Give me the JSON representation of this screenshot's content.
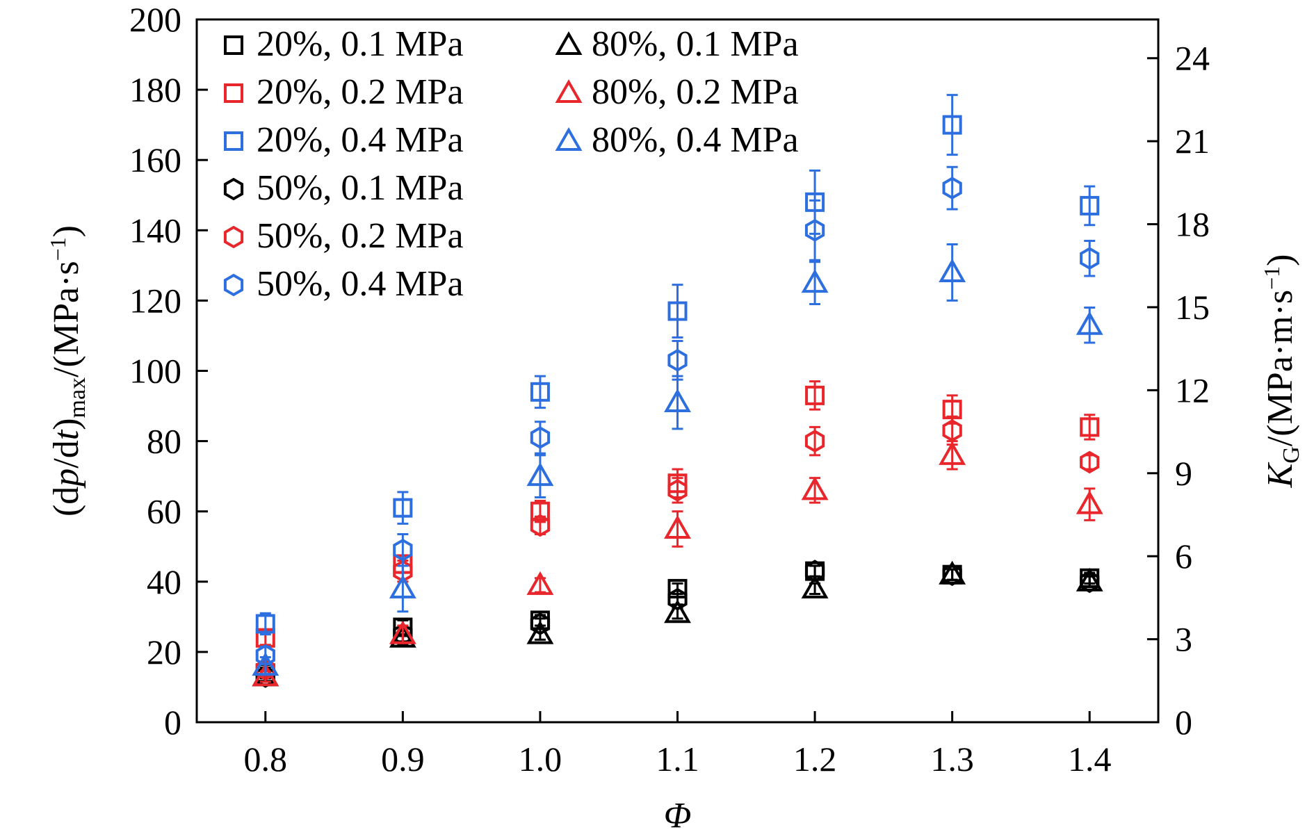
{
  "chart_data": {
    "type": "scatter",
    "title": "",
    "x": [
      0.8,
      0.9,
      1.0,
      1.1,
      1.2,
      1.3,
      1.4
    ],
    "xlabel": "Φ",
    "xlim": [
      0.75,
      1.45
    ],
    "xticks": [
      "0.8",
      "0.9",
      "1.0",
      "1.1",
      "1.2",
      "1.3",
      "1.4"
    ],
    "ylabel_left": {
      "parts": [
        {
          "text": "(d",
          "style": "normal"
        },
        {
          "text": "p",
          "style": "italic"
        },
        {
          "text": "/d",
          "style": "normal"
        },
        {
          "text": "t",
          "style": "italic"
        },
        {
          "text": ")",
          "style": "normal"
        },
        {
          "text": "max",
          "style": "sub"
        },
        {
          "text": "/(MPa·s",
          "style": "normal"
        },
        {
          "text": "−1",
          "style": "sup"
        },
        {
          "text": ")",
          "style": "normal"
        }
      ]
    },
    "ylim_left": [
      0,
      200
    ],
    "yticks_left": [
      "0",
      "20",
      "40",
      "60",
      "80",
      "100",
      "120",
      "140",
      "160",
      "180",
      "200"
    ],
    "ylabel_right": {
      "parts": [
        {
          "text": "K",
          "style": "italic"
        },
        {
          "text": "G",
          "style": "sub"
        },
        {
          "text": "/(MPa·m·s",
          "style": "normal"
        },
        {
          "text": "−1",
          "style": "sup"
        },
        {
          "text": ")",
          "style": "normal"
        }
      ]
    },
    "ylim_right": [
      0,
      25.4
    ],
    "yticks_right": [
      "0",
      "3",
      "6",
      "9",
      "12",
      "15",
      "18",
      "21",
      "24"
    ],
    "grid": false,
    "legend_position": "top-left",
    "colors": {
      "0.1 MPa": "#000000",
      "0.2 MPa": "#e8262b",
      "0.4 MPa": "#2e6fe0"
    },
    "series": [
      {
        "name": "20%, 0.1 MPa",
        "marker": "square",
        "color": "#000000",
        "values": [
          14,
          27,
          29,
          38,
          43,
          42,
          41
        ],
        "errors": [
          1.5,
          2,
          1.5,
          1.5,
          1.5,
          1.5,
          1.5
        ]
      },
      {
        "name": "20%, 0.2 MPa",
        "marker": "square",
        "color": "#e8262b",
        "values": [
          24,
          45,
          60,
          68,
          93,
          89,
          84
        ],
        "errors": [
          2,
          2.5,
          3,
          4,
          4,
          4,
          3.5
        ]
      },
      {
        "name": "20%, 0.4 MPa",
        "marker": "square",
        "color": "#2e6fe0",
        "values": [
          28,
          61,
          94,
          117,
          148,
          170,
          147
        ],
        "errors": [
          3,
          4.5,
          4.5,
          7.5,
          9,
          8.5,
          5.5
        ]
      },
      {
        "name": "50%, 0.1 MPa",
        "marker": "hexagon",
        "color": "#000000",
        "values": [
          13,
          25,
          28,
          35,
          43,
          42,
          40
        ],
        "errors": [
          1.5,
          2,
          1.5,
          1.5,
          1.5,
          1.5,
          1.5
        ]
      },
      {
        "name": "50%, 0.2 MPa",
        "marker": "hexagon",
        "color": "#e8262b",
        "values": [
          15,
          43,
          56,
          66,
          80,
          83,
          74
        ],
        "errors": [
          2,
          3,
          2.5,
          3.5,
          4,
          4,
          2
        ]
      },
      {
        "name": "50%, 0.4 MPa",
        "marker": "hexagon",
        "color": "#2e6fe0",
        "values": [
          19,
          49,
          81,
          103,
          140,
          152,
          132
        ],
        "errors": [
          2.5,
          4.5,
          4.5,
          5.5,
          8.5,
          6,
          5
        ]
      },
      {
        "name": "80%, 0.1 MPa",
        "marker": "triangle",
        "color": "#000000",
        "values": [
          13,
          24,
          25,
          31,
          38,
          42,
          40
        ],
        "errors": [
          1.5,
          2,
          1.5,
          1.5,
          1.5,
          1.5,
          1.5
        ]
      },
      {
        "name": "80%, 0.2 MPa",
        "marker": "triangle",
        "color": "#e8262b",
        "values": [
          13,
          25,
          39,
          55,
          66,
          76,
          62
        ],
        "errors": [
          1.5,
          2.5,
          2,
          5,
          3.5,
          4,
          4.5
        ]
      },
      {
        "name": "80%, 0.4 MPa",
        "marker": "triangle",
        "color": "#2e6fe0",
        "values": [
          16,
          38,
          70,
          91,
          125,
          128,
          113
        ],
        "errors": [
          2.5,
          6.5,
          6,
          7.5,
          6,
          8,
          5
        ]
      }
    ]
  }
}
